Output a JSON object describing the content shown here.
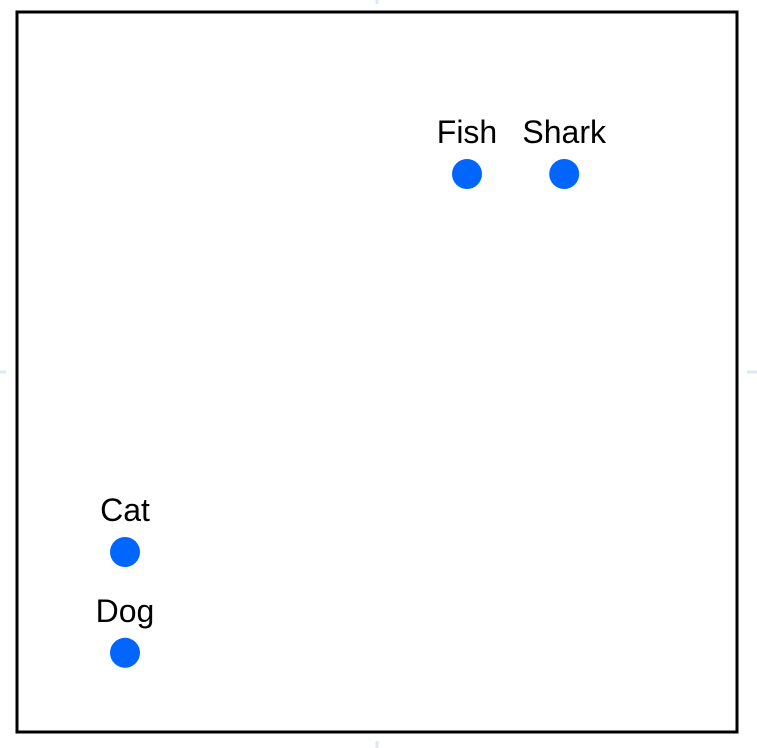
{
  "chart_data": {
    "type": "scatter",
    "title": "",
    "xlabel": "",
    "ylabel": "",
    "xlim": [
      -1,
      1
    ],
    "ylim": [
      -1,
      1
    ],
    "grid": false,
    "axes_visible": false,
    "marker_color": "#0066ff",
    "frame_color": "#000000",
    "points": [
      {
        "label": "Fish",
        "x": 0.25,
        "y": 0.55
      },
      {
        "label": "Shark",
        "x": 0.52,
        "y": 0.55
      },
      {
        "label": "Cat",
        "x": -0.7,
        "y": -0.5
      },
      {
        "label": "Dog",
        "x": -0.7,
        "y": -0.78
      }
    ]
  }
}
